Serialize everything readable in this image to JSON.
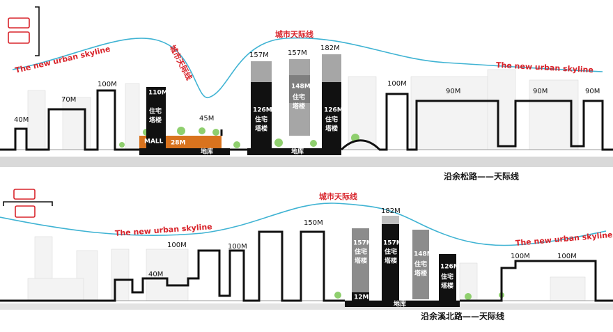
{
  "panels": [
    {
      "curve_labels": [
        "The new urban skyline",
        "城市天际线",
        "城市天际线",
        "The new urban skyline"
      ],
      "height_labels": [
        "40M",
        "70M",
        "100M",
        "110M",
        "45M",
        "157M",
        "157M",
        "182M",
        "126M",
        "148M",
        "126M",
        "100M",
        "90M",
        "90M",
        "90M"
      ],
      "tower_labels": [
        [
          "住宅",
          "塔楼"
        ],
        [
          "住宅",
          "塔楼"
        ],
        [
          "住宅",
          "塔楼"
        ],
        [
          "住宅",
          "塔楼"
        ]
      ],
      "mall": "MALL",
      "mall_height": "28M",
      "basements": [
        "地库",
        "地库"
      ],
      "caption": "沿余松路——天际线"
    },
    {
      "curve_labels": [
        "城市天际线",
        "The new urban skyline",
        "The new urban skyline"
      ],
      "height_labels": [
        "150M",
        "100M",
        "100M",
        "40M",
        "182M",
        "157M",
        "157M",
        "148M",
        "126M",
        "12M",
        "100M",
        "100M"
      ],
      "tower_labels": [
        [
          "住宅",
          "塔楼"
        ],
        [
          "住宅",
          "塔楼"
        ],
        [
          "住宅",
          "塔楼"
        ],
        [
          "住宅",
          "塔楼"
        ]
      ],
      "basements": [
        "地库"
      ],
      "caption": "沿余溪北路——天际线"
    }
  ]
}
